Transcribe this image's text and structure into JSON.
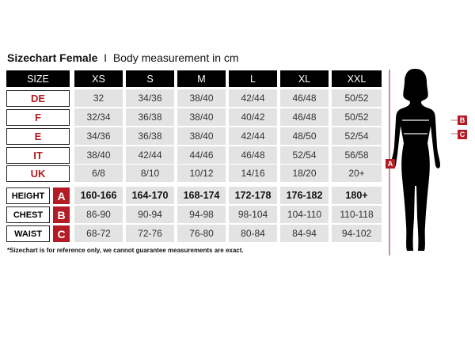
{
  "title": {
    "bold": "Sizechart Female",
    "separator": "I",
    "subtitle": "Body measurement in cm"
  },
  "header": {
    "label": "SIZE",
    "sizes": [
      "XS",
      "S",
      "M",
      "L",
      "XL",
      "XXL"
    ]
  },
  "systems": [
    {
      "label": "DE",
      "values": [
        "32",
        "34/36",
        "38/40",
        "42/44",
        "46/48",
        "50/52"
      ]
    },
    {
      "label": "F",
      "values": [
        "32/34",
        "36/38",
        "38/40",
        "40/42",
        "46/48",
        "50/52"
      ]
    },
    {
      "label": "E",
      "values": [
        "34/36",
        "36/38",
        "38/40",
        "42/44",
        "48/50",
        "52/54"
      ]
    },
    {
      "label": "IT",
      "values": [
        "38/40",
        "42/44",
        "44/46",
        "46/48",
        "52/54",
        "56/58"
      ]
    },
    {
      "label": "UK",
      "values": [
        "6/8",
        "8/10",
        "10/12",
        "14/16",
        "18/20",
        "20+"
      ]
    }
  ],
  "measurements": [
    {
      "label": "HEIGHT",
      "letter": "A",
      "values": [
        "160-166",
        "164-170",
        "168-174",
        "172-178",
        "176-182",
        "180+"
      ]
    },
    {
      "label": "CHEST",
      "letter": "B",
      "values": [
        "86-90",
        "90-94",
        "94-98",
        "98-104",
        "104-110",
        "110-118"
      ]
    },
    {
      "label": "WAIST",
      "letter": "C",
      "values": [
        "68-72",
        "72-76",
        "76-80",
        "80-84",
        "84-94",
        "94-102"
      ]
    }
  ],
  "footnote": "*Sizechart is for reference only, we cannot guarantee measurements are exact.",
  "figure": {
    "height_marker": "A",
    "chest_marker": "B",
    "waist_marker": "C"
  },
  "colors": {
    "accent": "#b31b25",
    "header": "#000000",
    "cell": "#e3e3e3"
  }
}
